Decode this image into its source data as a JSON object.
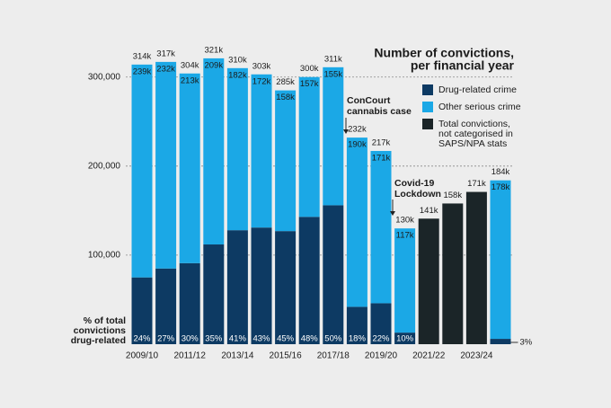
{
  "chart_data": {
    "type": "bar",
    "stacked": true,
    "title": [
      "Number of convictions,",
      "per financial year"
    ],
    "share_label": [
      "% of total",
      "convictions",
      "drug-related"
    ],
    "annotations": [
      [
        "ConCourt",
        "cannabis case"
      ],
      [
        "Covid-19",
        "Lockdown"
      ]
    ],
    "categories": [
      "2009/10",
      null,
      "2011/12",
      null,
      "2013/14",
      null,
      "2015/16",
      null,
      "2017/18",
      null,
      "2019/20",
      null,
      "2021/22",
      null,
      "2023/24",
      null
    ],
    "series": [
      {
        "name": "Drug-related crime",
        "color": "#0d3a63",
        "values": [
          75000,
          85000,
          91000,
          112000,
          128000,
          131000,
          127000,
          143000,
          156000,
          42000,
          46000,
          13000,
          null,
          null,
          null,
          6000
        ]
      },
      {
        "name": "Other serious crime",
        "color": "#1ba8e6",
        "values": [
          239000,
          232000,
          213000,
          209000,
          182000,
          172000,
          158000,
          157000,
          155000,
          190000,
          171000,
          117000,
          null,
          null,
          null,
          178000
        ],
        "value_labels": [
          "239k",
          "232k",
          "213k",
          "209k",
          "182k",
          "172k",
          "158k",
          "157k",
          "155k",
          "190k",
          "171k",
          "117k",
          null,
          null,
          null,
          "178k"
        ]
      },
      {
        "name": "Total convictions, not categorised in SAPS/NPA stats",
        "color": "#1b2528",
        "values": [
          null,
          null,
          null,
          null,
          null,
          null,
          null,
          null,
          null,
          null,
          null,
          null,
          141000,
          158000,
          171000,
          null
        ],
        "value_labels": [
          null,
          null,
          null,
          null,
          null,
          null,
          null,
          null,
          null,
          null,
          null,
          null,
          "141k",
          "158k",
          "171k",
          null
        ]
      }
    ],
    "totals": {
      "values": [
        314000,
        317000,
        304000,
        321000,
        310000,
        303000,
        285000,
        300000,
        311000,
        232000,
        217000,
        130000,
        null,
        null,
        null,
        184000
      ],
      "value_labels": [
        "314k",
        "317k",
        "304k",
        "321k",
        "310k",
        "303k",
        "285k",
        "300k",
        "311k",
        "232k",
        "217k",
        "130k",
        null,
        null,
        null,
        "184k"
      ]
    },
    "drug_share": {
      "values": [
        24,
        27,
        30,
        35,
        41,
        43,
        45,
        48,
        50,
        18,
        22,
        10,
        null,
        null,
        null,
        3
      ],
      "value_labels": [
        "24%",
        "27%",
        "30%",
        "35%",
        "41%",
        "43%",
        "45%",
        "48%",
        "50%",
        "18%",
        "22%",
        "10%",
        null,
        null,
        null,
        "3%"
      ]
    },
    "ylim": [
      0,
      330000
    ],
    "yticks": [
      {
        "value": 100000,
        "label": "100,000"
      },
      {
        "value": 200000,
        "label": "200,000"
      },
      {
        "value": 300000,
        "label": "300,000"
      }
    ],
    "grid": true
  }
}
